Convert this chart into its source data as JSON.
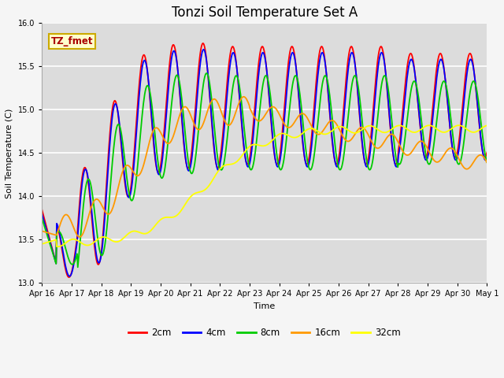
{
  "title": "Tonzi Soil Temperature Set A",
  "xlabel": "Time",
  "ylabel": "Soil Temperature (C)",
  "ylim": [
    13.0,
    16.0
  ],
  "yticks": [
    13.0,
    13.5,
    14.0,
    14.5,
    15.0,
    15.5,
    16.0
  ],
  "xtick_labels": [
    "Apr 16",
    "Apr 17",
    "Apr 18",
    "Apr 19",
    "Apr 20",
    "Apr 21",
    "Apr 22",
    "Apr 23",
    "Apr 24",
    "Apr 25",
    "Apr 26",
    "Apr 27",
    "Apr 28",
    "Apr 29",
    "Apr 30",
    "May 1"
  ],
  "legend_label": "TZ_fmet",
  "series_labels": [
    "2cm",
    "4cm",
    "8cm",
    "16cm",
    "32cm"
  ],
  "series_colors": [
    "#ff0000",
    "#0000ff",
    "#00cc00",
    "#ff9900",
    "#ffff00"
  ],
  "plot_bg_color": "#dcdcdc",
  "fig_bg_color": "#f5f5f5",
  "grid_color": "#ffffff",
  "title_fontsize": 12,
  "axis_fontsize": 8,
  "tick_fontsize": 7,
  "legend_box_facecolor": "#ffffcc",
  "legend_box_edgecolor": "#ccaa00",
  "legend_text_color": "#aa0000"
}
